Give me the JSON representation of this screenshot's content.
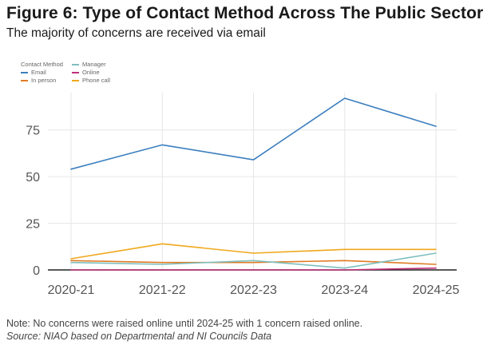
{
  "title": "Figure 6: Type of Contact Method Across The Public Sector",
  "subtitle": "The majority of concerns are received via email",
  "footnote": "Note: No concerns were raised online until 2024-25 with 1 concern raised online.",
  "source": "Source: NIAO based on Departmental and NI Councils Data",
  "chart_data": {
    "type": "line",
    "legend_title": "Contact Method",
    "legend_position": "top-left",
    "x": [
      "2020-21",
      "2021-22",
      "2022-23",
      "2023-24",
      "2024-25"
    ],
    "ylim": [
      0,
      95
    ],
    "yticks": [
      0,
      25,
      50,
      75
    ],
    "grid": true,
    "series": [
      {
        "name": "Email",
        "color": "#3b7fbf",
        "values": [
          54,
          67,
          59,
          92,
          77
        ]
      },
      {
        "name": "In person",
        "color": "#e07b24",
        "values": [
          5,
          4,
          4,
          5,
          3
        ]
      },
      {
        "name": "Manager",
        "color": "#7fbfbf",
        "values": [
          4,
          3,
          5,
          1,
          9
        ]
      },
      {
        "name": "Online",
        "color": "#c0307a",
        "values": [
          0,
          0,
          0,
          0,
          1
        ]
      },
      {
        "name": "Phone call",
        "color": "#f0a81c",
        "values": [
          6,
          14,
          9,
          11,
          11
        ]
      }
    ]
  }
}
